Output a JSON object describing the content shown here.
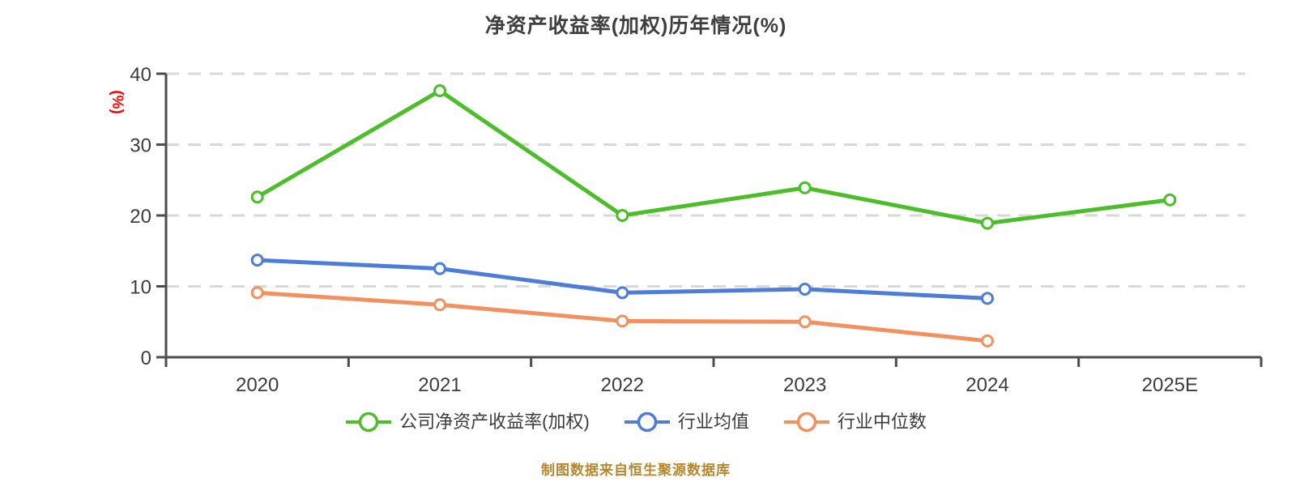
{
  "title": "净资产收益率(加权)历年情况(%)",
  "footer": "制图数据来自恒生聚源数据库",
  "colors": {
    "background": "#FFFFFF",
    "title": "#3F3F3F",
    "axis": "#4D4D4D",
    "tick_label": "#3C3C3C",
    "grid": "#D9D9D9",
    "ylabel": "#FF0000",
    "footer_text": "#B8862B",
    "legend_text": "#3C3C3C",
    "series_company": "#4CBE2A",
    "series_industry_mean": "#4D7CD9",
    "series_industry_median": "#F2915F"
  },
  "chart_data": {
    "type": "line",
    "title": "净资产收益率(加权)历年情况(%)",
    "xlabel": "",
    "ylabel": "(%)",
    "categories": [
      "2020",
      "2021",
      "2022",
      "2023",
      "2024",
      "2025E"
    ],
    "series": [
      {
        "name": "公司净资产收益率(加权)",
        "color": "#4CBE2A",
        "values": [
          22.6,
          37.6,
          20.0,
          23.9,
          18.9,
          22.2
        ]
      },
      {
        "name": "行业均值",
        "color": "#4D7CD9",
        "values": [
          13.7,
          12.5,
          9.1,
          9.6,
          8.3,
          null
        ]
      },
      {
        "name": "行业中位数",
        "color": "#F2915F",
        "values": [
          9.1,
          7.4,
          5.1,
          5.0,
          2.3,
          null
        ]
      }
    ],
    "ylim": [
      0,
      40
    ],
    "yticks": [
      0,
      10,
      20,
      30,
      40
    ],
    "grid": "horizontal-dashed",
    "legend_position": "bottom",
    "marker": "circle-white-fill"
  }
}
